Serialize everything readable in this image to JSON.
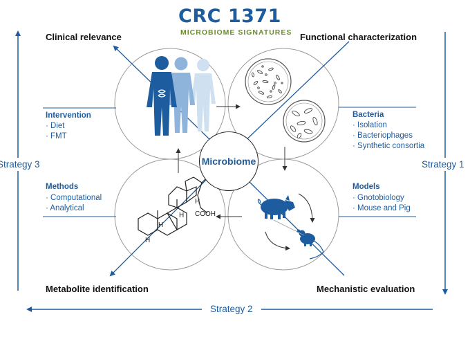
{
  "header": {
    "title": "CRC 1371",
    "subtitle": "MICROBIOME SIGNATURES"
  },
  "center": {
    "label": "Microbiome"
  },
  "corners": {
    "top_left": "Clinical relevance",
    "top_right": "Functional characterization",
    "bottom_left": "Metabolite identification",
    "bottom_right": "Mechanistic evaluation"
  },
  "blocks": {
    "intervention": {
      "heading": "Intervention",
      "items": [
        "· Diet",
        "· FMT"
      ]
    },
    "bacteria": {
      "heading": "Bacteria",
      "items": [
        "· Isolation",
        "· Bacteriophages",
        "· Synthetic consortia"
      ]
    },
    "methods": {
      "heading": "Methods",
      "items": [
        "· Computational",
        "· Analytical"
      ]
    },
    "models": {
      "heading": "Models",
      "items": [
        "· Gnotobiology",
        "· Mouse and Pig"
      ]
    }
  },
  "strategies": {
    "left": "Strategy 3",
    "right": "Strategy 1",
    "bottom": "Strategy 2"
  },
  "molecule": {
    "h1": "H",
    "h2": "H",
    "h3": "H",
    "h4": "H",
    "cooh": "COOH"
  },
  "colors": {
    "blue": "#1d5c9e",
    "green": "#6a8e2a",
    "light_blue_1": "#6f9fcf",
    "light_blue_2": "#b4cde6",
    "circle": "#999999",
    "text": "#111111"
  }
}
